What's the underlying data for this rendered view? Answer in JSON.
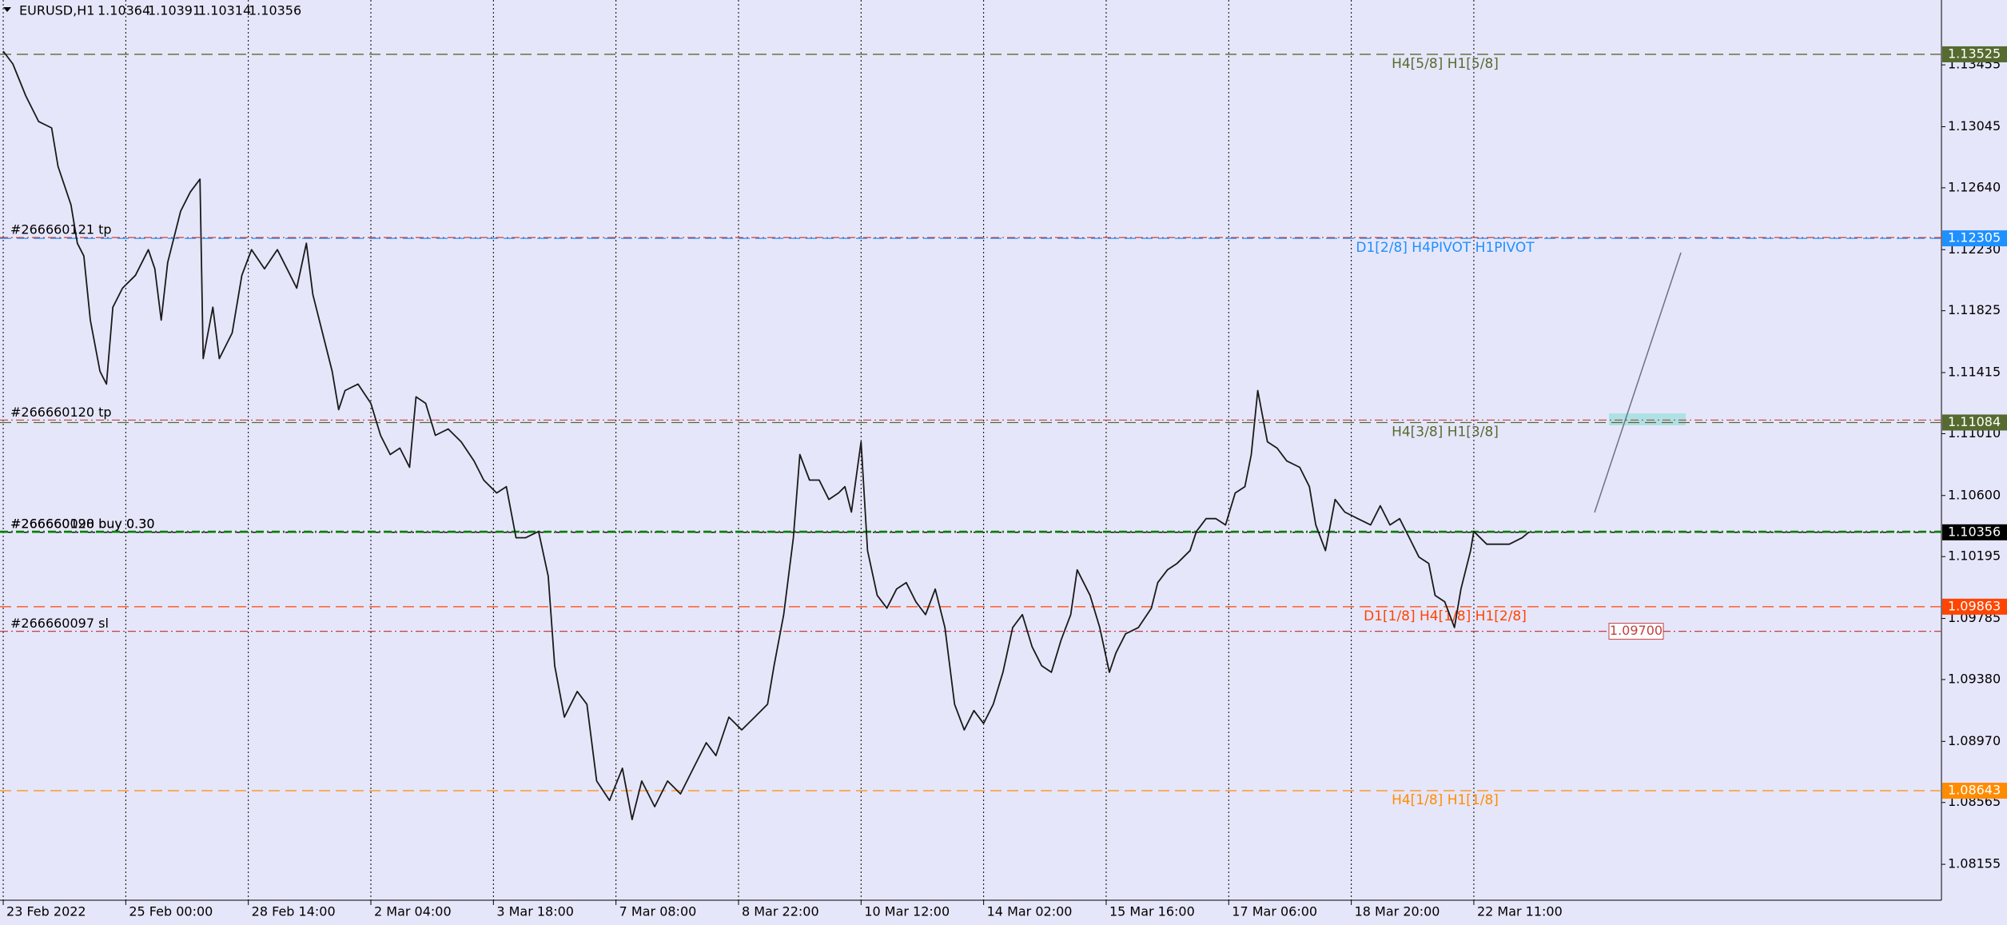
{
  "chart_data": {
    "type": "line",
    "title": "EURUSD,H1",
    "ohlc": [
      1.10364,
      1.10391,
      1.10314,
      1.10356
    ],
    "grid": true,
    "xlim": [
      -39,
      563
    ],
    "ylim": [
      1.07917,
      1.13885
    ],
    "xticks": [
      {
        "value": -38,
        "label": "23 Feb 2022"
      },
      {
        "value": 0,
        "label": "25 Feb 00:00"
      },
      {
        "value": 38,
        "label": "28 Feb 14:00"
      },
      {
        "value": 76,
        "label": "2 Mar 04:00"
      },
      {
        "value": 114,
        "label": "3 Mar 18:00"
      },
      {
        "value": 152,
        "label": "7 Mar 08:00"
      },
      {
        "value": 190,
        "label": "8 Mar 22:00"
      },
      {
        "value": 228,
        "label": "10 Mar 12:00"
      },
      {
        "value": 266,
        "label": "14 Mar 02:00"
      },
      {
        "value": 304,
        "label": "15 Mar 16:00"
      },
      {
        "value": 342,
        "label": "17 Mar 06:00"
      },
      {
        "value": 380,
        "label": "18 Mar 20:00"
      },
      {
        "value": 418,
        "label": "22 Mar 11:00"
      }
    ],
    "yticks": [
      1.13455,
      1.13045,
      {
        "value": 1.1264,
        "label": "1.12640"
      },
      {
        "value": 1.1223,
        "label": "1.12230"
      },
      1.11825,
      1.11415,
      {
        "value": 1.1101,
        "label": "1.11010"
      },
      {
        "value": 1.106,
        "label": "1.10600"
      },
      1.10195,
      1.09785,
      {
        "value": 1.0938,
        "label": "1.09380"
      },
      {
        "value": 1.0897,
        "label": "1.08970"
      },
      1.08565,
      1.08155
    ],
    "series": [
      {
        "color": "#1a1a1a",
        "x": [
          -38,
          -35,
          -31,
          -27,
          -23,
          -21,
          -17,
          -15,
          -13,
          -11,
          -8,
          -6,
          -4,
          -1,
          3,
          7,
          9,
          11,
          13,
          15,
          17,
          20,
          23,
          24,
          27,
          29,
          33,
          36,
          39,
          43,
          47,
          50,
          53,
          56,
          58,
          61,
          64,
          66,
          68,
          72,
          76,
          79,
          82,
          85,
          88,
          90,
          93,
          96,
          100,
          104,
          108,
          111,
          115,
          118,
          121,
          124,
          128,
          131,
          133,
          136,
          140,
          143,
          146,
          150,
          154,
          157,
          160,
          164,
          168,
          172,
          176,
          180,
          183,
          187,
          191,
          195,
          199,
          201,
          204,
          207,
          209,
          212,
          215,
          218,
          221,
          223,
          225,
          228,
          230,
          233,
          236,
          239,
          242,
          245,
          248,
          251,
          254,
          257,
          260,
          263,
          266,
          269,
          272,
          275,
          278,
          281,
          284,
          287,
          290,
          293,
          295,
          299,
          302,
          305,
          307,
          310,
          314,
          318,
          320,
          323,
          326,
          330,
          332,
          335,
          338,
          341,
          344,
          347,
          349,
          351,
          354,
          357,
          360,
          364,
          367,
          369,
          372,
          375,
          378,
          382,
          386,
          389,
          392,
          395,
          398,
          401,
          404,
          406,
          409,
          412,
          414,
          417,
          418,
          422,
          425,
          429,
          433,
          435
        ],
        "values": [
          1.13546,
          1.13461,
          1.13249,
          1.13079,
          1.13037,
          1.12782,
          1.12527,
          1.12272,
          1.12188,
          1.11763,
          1.11423,
          1.11339,
          1.11848,
          1.11975,
          1.1206,
          1.1223,
          1.12103,
          1.11763,
          1.12145,
          1.12315,
          1.12485,
          1.12612,
          1.12697,
          1.11508,
          1.11848,
          1.11508,
          1.11678,
          1.1206,
          1.1223,
          1.12103,
          1.1223,
          1.12103,
          1.11975,
          1.12272,
          1.11933,
          1.11678,
          1.11423,
          1.11169,
          1.11296,
          1.11339,
          1.11211,
          1.10999,
          1.10872,
          1.10914,
          1.10787,
          1.11254,
          1.11211,
          1.10999,
          1.11041,
          1.10956,
          1.10829,
          1.10702,
          1.10617,
          1.10659,
          1.1032,
          1.1032,
          1.10362,
          1.10065,
          1.09471,
          1.09131,
          1.09301,
          1.09216,
          1.08707,
          1.08579,
          1.08792,
          1.08452,
          1.08707,
          1.08537,
          1.08707,
          1.08622,
          1.08792,
          1.08961,
          1.08876,
          1.09131,
          1.09046,
          1.09131,
          1.09216,
          1.09471,
          1.0981,
          1.1032,
          1.10872,
          1.10702,
          1.10702,
          1.10574,
          1.10617,
          1.10659,
          1.1049,
          1.10956,
          1.10235,
          1.09938,
          1.09853,
          1.0998,
          1.10023,
          1.09895,
          1.0981,
          1.0998,
          1.09725,
          1.09216,
          1.09046,
          1.09174,
          1.09089,
          1.09216,
          1.09428,
          1.09725,
          1.0981,
          1.09598,
          1.09471,
          1.09428,
          1.09641,
          1.0981,
          1.10107,
          1.09938,
          1.09725,
          1.09428,
          1.09556,
          1.09683,
          1.09725,
          1.09853,
          1.10023,
          1.10107,
          1.1015,
          1.10235,
          1.10362,
          1.10447,
          1.10447,
          1.10405,
          1.10617,
          1.10659,
          1.10872,
          1.11296,
          1.10956,
          1.10914,
          1.10829,
          1.10787,
          1.10659,
          1.10405,
          1.10235,
          1.10574,
          1.1049,
          1.10447,
          1.10405,
          1.10532,
          1.10405,
          1.10447,
          1.1032,
          1.10192,
          1.1015,
          1.09938,
          1.09895,
          1.09725,
          1.0998,
          1.10235,
          1.10362,
          1.10277,
          1.10277,
          1.10277,
          1.1032,
          1.10356
        ]
      }
    ],
    "levels": [
      {
        "value": 1.13525,
        "label": "H4[5/8] H1[5/8]",
        "color": "#556b2f"
      },
      {
        "value": 1.12305,
        "label": "D1[2/8] H4PIVOT H1PIVOT",
        "color": "#1e90ff"
      },
      {
        "value": 1.11084,
        "label": "H4[3/8] H1[3/8]",
        "color": "#556b2f"
      },
      {
        "value": 1.10356,
        "color": "#000000"
      },
      {
        "value": 1.09863,
        "label": "D1[1/8] H4[1/8] H1[2/8]",
        "color": "#ff4500"
      },
      {
        "value": 1.08643,
        "label": "H4[1/8] H1[1/8]",
        "color": "#ff8c00"
      }
    ],
    "orders": [
      {
        "value": 1.1231,
        "label": "#266660121 tp",
        "color": "#c04040"
      },
      {
        "value": 1.111,
        "label": "#266660120 tp",
        "color": "#c04040"
      },
      {
        "value": 1.1036,
        "label": "#266660098 buy 0.30",
        "color": "#008000"
      },
      {
        "value": 1.1036,
        "label": "#266660120 buy 0.30",
        "color": "#008000"
      },
      {
        "value": 1.097,
        "label": "#266660097 sl",
        "color": "#c04040",
        "value_label": "1.09700"
      }
    ]
  }
}
